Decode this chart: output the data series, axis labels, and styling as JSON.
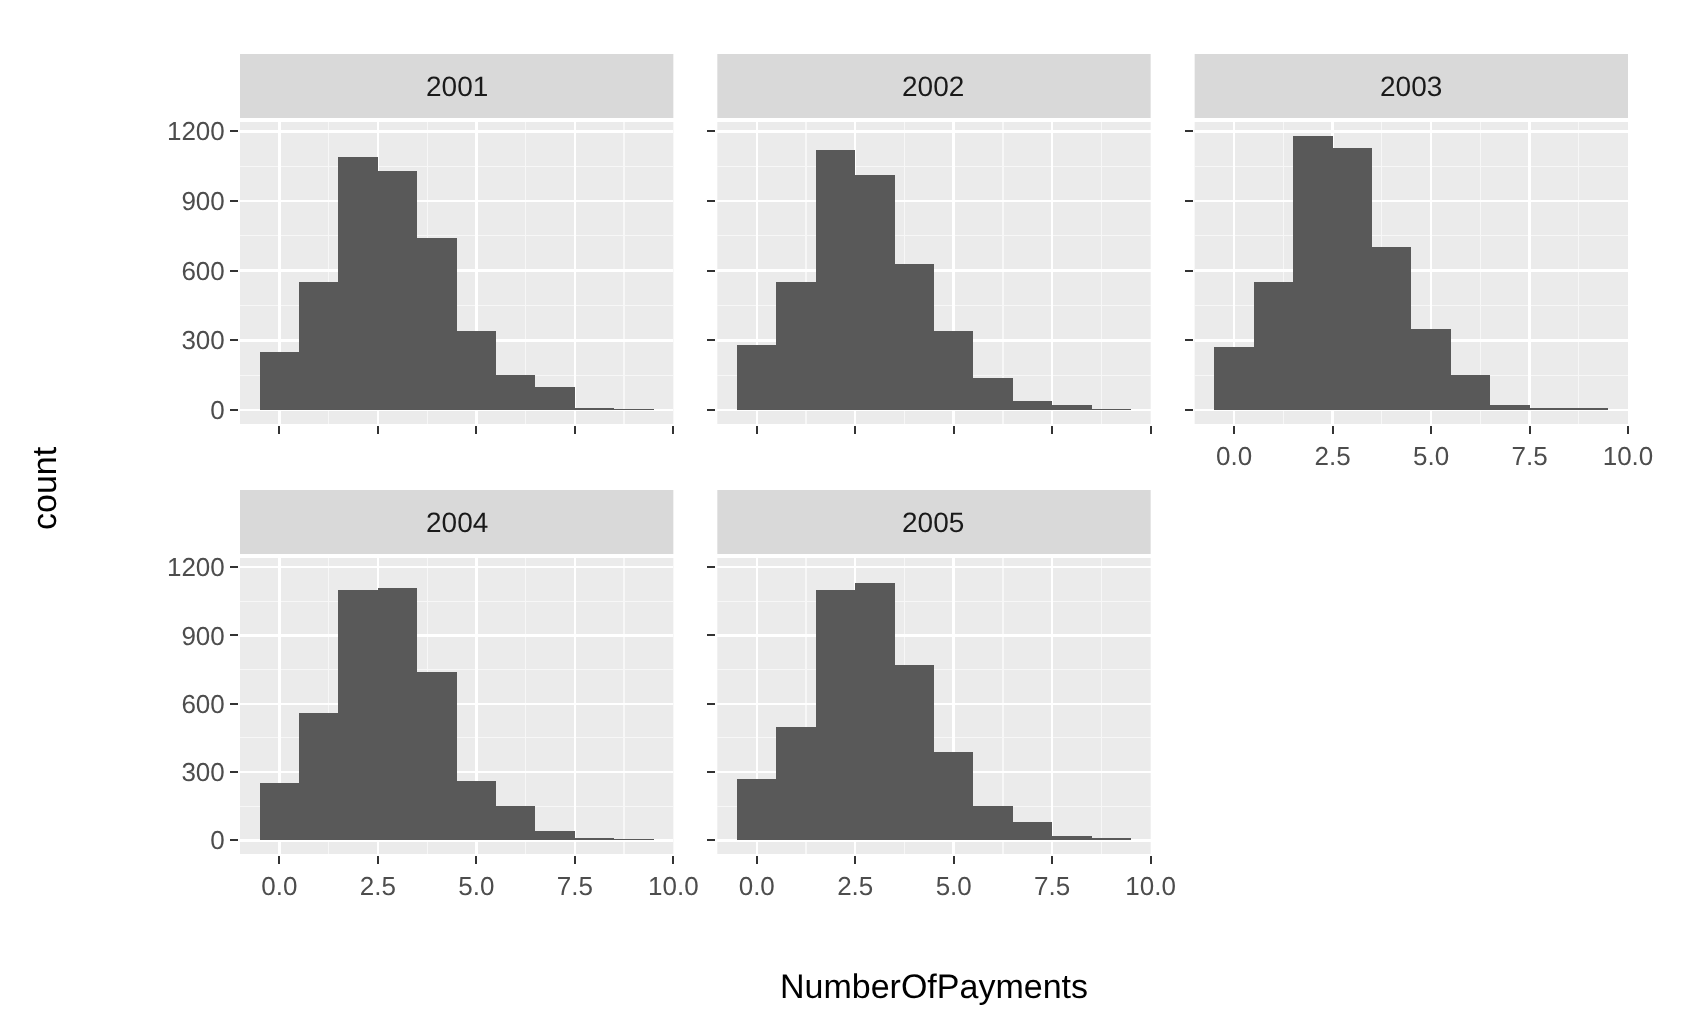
{
  "chart_data": [
    {
      "type": "histogram",
      "title": "2001",
      "xlabel": "NumberOfPayments",
      "ylabel": "count",
      "bins": [
        -0.5,
        0.5,
        1.5,
        2.5,
        3.5,
        4.5,
        5.5,
        6.5,
        7.5,
        8.5,
        9.5
      ],
      "values": [
        250,
        550,
        1090,
        1030,
        740,
        340,
        150,
        100,
        10,
        5
      ],
      "color": "#595959",
      "xlim": [
        -1,
        10
      ],
      "ylim": [
        -60,
        1240
      ],
      "xticks": [
        {
          "value": 0,
          "label": null
        },
        {
          "value": 2.5,
          "label": null
        },
        {
          "value": 5,
          "label": null
        },
        {
          "value": 7.5,
          "label": null
        },
        {
          "value": 10,
          "label": null
        }
      ],
      "yticks": [
        0,
        300,
        600,
        900,
        1200
      ],
      "tick_labels": "y",
      "grid": true
    },
    {
      "type": "histogram",
      "title": "2002",
      "bins": [
        -0.5,
        0.5,
        1.5,
        2.5,
        3.5,
        4.5,
        5.5,
        6.5,
        7.5,
        8.5,
        9.5
      ],
      "values": [
        280,
        550,
        1120,
        1010,
        630,
        340,
        140,
        40,
        20,
        5
      ],
      "color": "#595959",
      "xlim": [
        -1,
        10
      ],
      "ylim": [
        -60,
        1240
      ],
      "xticks": [
        {
          "value": 0,
          "label": null
        },
        {
          "value": 2.5,
          "label": null
        },
        {
          "value": 5,
          "label": null
        },
        {
          "value": 7.5,
          "label": null
        },
        {
          "value": 10,
          "label": null
        }
      ],
      "yticks": [
        {
          "value": 0,
          "label": null
        },
        {
          "value": 300,
          "label": null
        },
        {
          "value": 600,
          "label": null
        },
        {
          "value": 900,
          "label": null
        },
        {
          "value": 1200,
          "label": null
        }
      ],
      "tick_labels": false,
      "grid": true
    },
    {
      "type": "histogram",
      "title": "2003",
      "bins": [
        -0.5,
        0.5,
        1.5,
        2.5,
        3.5,
        4.5,
        5.5,
        6.5,
        7.5,
        8.5,
        9.5
      ],
      "values": [
        270,
        550,
        1180,
        1130,
        700,
        350,
        150,
        20,
        10,
        10
      ],
      "color": "#595959",
      "xlim": [
        -1,
        10
      ],
      "ylim": [
        -60,
        1240
      ],
      "xticks": [
        {
          "value": 0,
          "label": "0.0"
        },
        {
          "value": 2.5,
          "label": "2.5"
        },
        {
          "value": 5,
          "label": "5.0"
        },
        {
          "value": 7.5,
          "label": "7.5"
        },
        {
          "value": 10,
          "label": "10.0"
        }
      ],
      "yticks": [
        0,
        300,
        600,
        900,
        1200
      ],
      "tick_labels": "x",
      "grid": true
    },
    {
      "type": "histogram",
      "title": "2004",
      "bins": [
        -0.5,
        0.5,
        1.5,
        2.5,
        3.5,
        4.5,
        5.5,
        6.5,
        7.5,
        8.5,
        9.5
      ],
      "values": [
        250,
        560,
        1100,
        1110,
        740,
        260,
        150,
        40,
        10,
        5
      ],
      "color": "#595959",
      "xlim": [
        -1,
        10
      ],
      "ylim": [
        -60,
        1240
      ],
      "xticks": [
        {
          "value": 0,
          "label": "0.0"
        },
        {
          "value": 2.5,
          "label": "2.5"
        },
        {
          "value": 5,
          "label": "5.0"
        },
        {
          "value": 7.5,
          "label": "7.5"
        },
        {
          "value": 10,
          "label": "10.0"
        }
      ],
      "yticks": [
        0,
        300,
        600,
        900,
        1200
      ],
      "grid": true
    },
    {
      "type": "histogram",
      "title": "2005",
      "bins": [
        -0.5,
        0.5,
        1.5,
        2.5,
        3.5,
        4.5,
        5.5,
        6.5,
        7.5,
        8.5,
        9.5
      ],
      "values": [
        270,
        500,
        1100,
        1130,
        770,
        390,
        150,
        80,
        20,
        10
      ],
      "color": "#595959",
      "xlim": [
        -1,
        10
      ],
      "ylim": [
        -60,
        1240
      ],
      "xticks": [
        {
          "value": 0,
          "label": "0.0"
        },
        {
          "value": 2.5,
          "label": "2.5"
        },
        {
          "value": 5,
          "label": "5.0"
        },
        {
          "value": 7.5,
          "label": "7.5"
        },
        {
          "value": 10,
          "label": "10.0"
        }
      ],
      "yticks": [
        0,
        300,
        600,
        900,
        1200
      ],
      "tick_labels": "x",
      "grid": true
    }
  ]
}
